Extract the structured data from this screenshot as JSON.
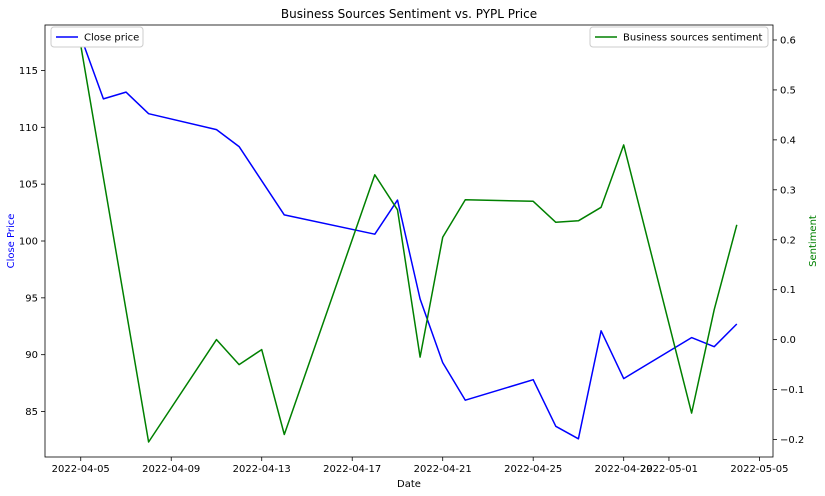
{
  "chart_data": {
    "type": "line",
    "title": "Business Sources Sentiment vs. PYPL Price",
    "xlabel": "Date",
    "ylabel_left": "Close Price",
    "ylabel_right": "Sentiment",
    "grid": false,
    "x_ticks": [
      "2022-04-05",
      "2022-04-09",
      "2022-04-13",
      "2022-04-17",
      "2022-04-21",
      "2022-04-25",
      "2022-04-29",
      "2022-05-01",
      "2022-05-05"
    ],
    "y_left_ticks": [
      "85",
      "90",
      "95",
      "100",
      "105",
      "110",
      "115"
    ],
    "y_right_ticks": [
      "−0.2",
      "−0.1",
      "0.0",
      "0.1",
      "0.2",
      "0.3",
      "0.4",
      "0.5",
      "0.6"
    ],
    "ylim_left": [
      81.0,
      119.0
    ],
    "ylim_right": [
      -0.235,
      0.63
    ],
    "series": [
      {
        "name": "Close price",
        "axis": "left",
        "color": "#0000ff",
        "legend_position": "upper-left",
        "points": [
          {
            "x": "2022-04-05",
            "y": 118.0
          },
          {
            "x": "2022-04-06",
            "y": 112.5
          },
          {
            "x": "2022-04-07",
            "y": 113.1
          },
          {
            "x": "2022-04-08",
            "y": 111.2
          },
          {
            "x": "2022-04-11",
            "y": 109.8
          },
          {
            "x": "2022-04-12",
            "y": 108.3
          },
          {
            "x": "2022-04-14",
            "y": 102.3
          },
          {
            "x": "2022-04-18",
            "y": 100.6
          },
          {
            "x": "2022-04-19",
            "y": 103.6
          },
          {
            "x": "2022-04-20",
            "y": 94.9
          },
          {
            "x": "2022-04-21",
            "y": 89.3
          },
          {
            "x": "2022-04-22",
            "y": 86.0
          },
          {
            "x": "2022-04-25",
            "y": 87.8
          },
          {
            "x": "2022-04-26",
            "y": 83.7
          },
          {
            "x": "2022-04-27",
            "y": 82.6
          },
          {
            "x": "2022-04-28",
            "y": 92.1
          },
          {
            "x": "2022-04-29",
            "y": 87.9
          },
          {
            "x": "2022-05-02",
            "y": 91.5
          },
          {
            "x": "2022-05-03",
            "y": 90.7
          },
          {
            "x": "2022-05-04",
            "y": 92.7
          }
        ]
      },
      {
        "name": "Business sources sentiment",
        "axis": "right",
        "color": "#008000",
        "legend_position": "upper-right",
        "points": [
          {
            "x": "2022-04-05",
            "y": 0.59
          },
          {
            "x": "2022-04-08",
            "y": -0.205
          },
          {
            "x": "2022-04-11",
            "y": 0.0
          },
          {
            "x": "2022-04-12",
            "y": -0.05
          },
          {
            "x": "2022-04-13",
            "y": -0.02
          },
          {
            "x": "2022-04-14",
            "y": -0.19
          },
          {
            "x": "2022-04-18",
            "y": 0.33
          },
          {
            "x": "2022-04-19",
            "y": 0.26
          },
          {
            "x": "2022-04-20",
            "y": -0.035
          },
          {
            "x": "2022-04-21",
            "y": 0.205
          },
          {
            "x": "2022-04-22",
            "y": 0.28
          },
          {
            "x": "2022-04-25",
            "y": 0.277
          },
          {
            "x": "2022-04-26",
            "y": 0.235
          },
          {
            "x": "2022-04-27",
            "y": 0.238
          },
          {
            "x": "2022-04-28",
            "y": 0.265
          },
          {
            "x": "2022-04-29",
            "y": 0.39
          },
          {
            "x": "2022-05-02",
            "y": -0.147
          },
          {
            "x": "2022-05-03",
            "y": 0.06
          },
          {
            "x": "2022-05-04",
            "y": 0.23
          }
        ]
      }
    ]
  }
}
